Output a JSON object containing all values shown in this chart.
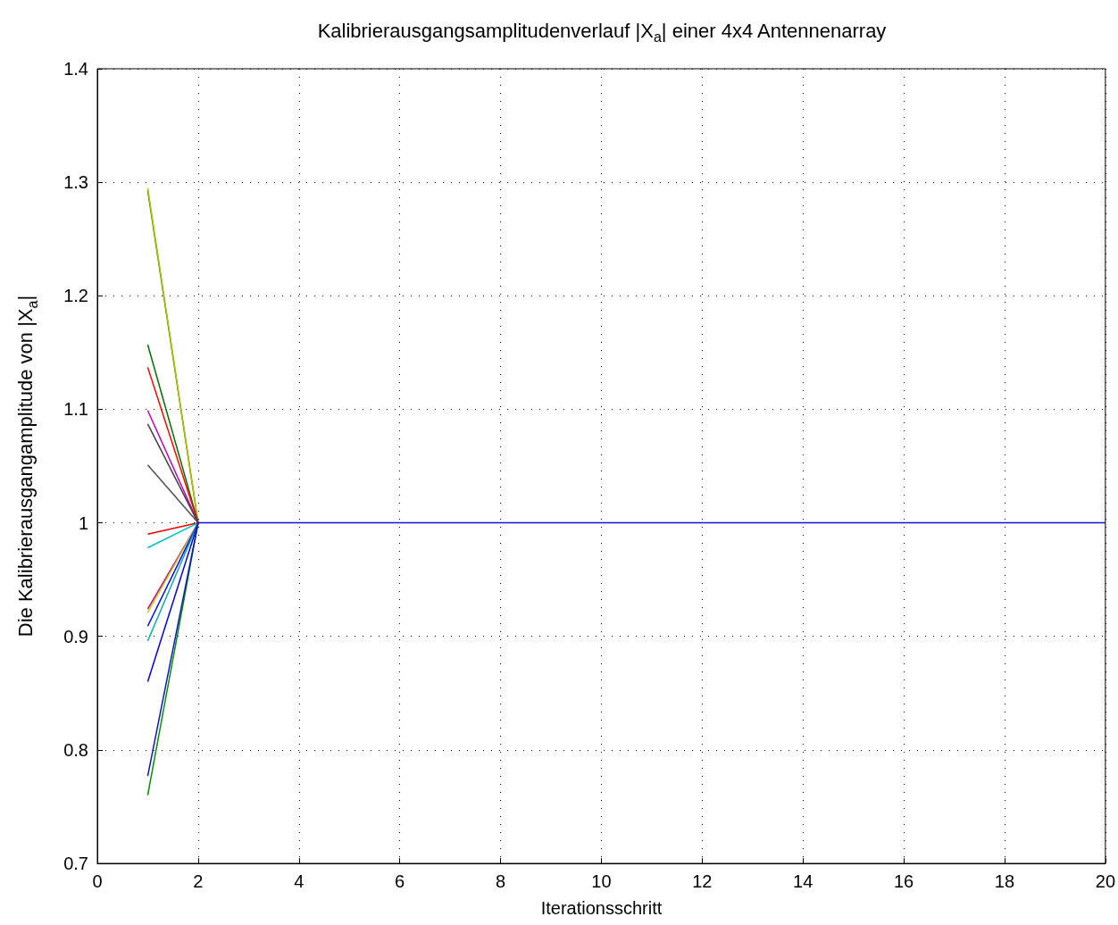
{
  "chart_data": {
    "type": "line",
    "title": "Kalibrierausgangsamplitudenverlauf |X$_{a}$| einer 4x4 Antennenarray",
    "xlabel": "Iterationsschritt",
    "ylabel": "Die Kalibrierausgangamplitude von |X$_{a}$|",
    "x": [
      1,
      2
    ],
    "series": [
      {
        "color": "#008000",
        "values": [
          1.293,
          1
        ]
      },
      {
        "color": "#bfbf00",
        "values": [
          1.295,
          1
        ]
      },
      {
        "color": "#007000",
        "values": [
          1.157,
          1
        ]
      },
      {
        "color": "#ff0000",
        "values": [
          1.137,
          1
        ]
      },
      {
        "color": "#bf00bf",
        "values": [
          1.099,
          1
        ]
      },
      {
        "color": "#404040",
        "values": [
          1.087,
          1
        ]
      },
      {
        "color": "#505050",
        "values": [
          1.051,
          1
        ]
      },
      {
        "color": "#e60000",
        "values": [
          0.99,
          1
        ]
      },
      {
        "color": "#00bfbf",
        "values": [
          0.978,
          1
        ]
      },
      {
        "color": "#aa00aa",
        "values": [
          0.924,
          1
        ]
      },
      {
        "color": "#cccc00",
        "values": [
          0.921,
          1
        ]
      },
      {
        "color": "#0000ff",
        "values": [
          0.909,
          1
        ]
      },
      {
        "color": "#00aaaa",
        "values": [
          0.896,
          1
        ]
      },
      {
        "color": "#0000e0",
        "values": [
          0.86,
          1
        ]
      },
      {
        "color": "#009000",
        "values": [
          0.76,
          1
        ]
      },
      {
        "color": "#1010c8",
        "x": [
          1,
          2,
          3,
          4,
          5,
          6,
          7,
          8,
          9,
          10,
          11,
          12,
          13,
          14,
          15,
          16,
          17,
          18,
          19,
          20
        ],
        "values": [
          0.777,
          1,
          1,
          1,
          1,
          1,
          1,
          1,
          1,
          1,
          1,
          1,
          1,
          1,
          1,
          1,
          1,
          1,
          1,
          1
        ]
      }
    ],
    "xlim": [
      0,
      20
    ],
    "xticks": [
      0,
      2,
      4,
      6,
      8,
      10,
      12,
      14,
      16,
      18,
      20
    ],
    "ylim": [
      0.7,
      1.4
    ],
    "yticks": [
      0.7,
      0.8,
      0.9,
      1,
      1.1,
      1.2,
      1.3,
      1.4
    ],
    "grid": true,
    "marker": "none",
    "line_style": "solid"
  }
}
